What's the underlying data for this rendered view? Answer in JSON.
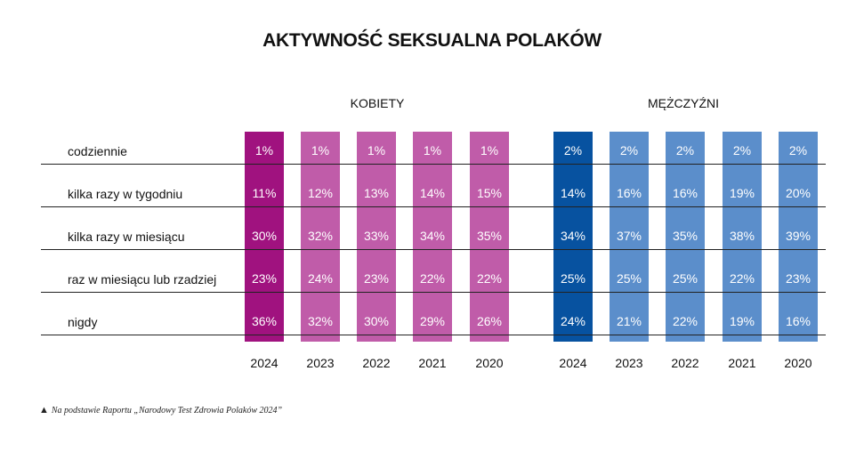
{
  "title": "AKTYWNOŚĆ SEKSUALNA POLAKÓW",
  "footnote": "Na podstawie Raportu „Narodowy Test Zdrowia Polaków 2024”",
  "footnote_icon": "triangle-icon",
  "colors": {
    "women_current": "#a0127f",
    "women_past": "#c05ca9",
    "men_current": "#0752a0",
    "men_past": "#5b8ecb"
  },
  "chart_data": {
    "type": "table",
    "title": "AKTYWNOŚĆ SEKSUALNA POLAKÓW",
    "rows": [
      "codziennie",
      "kilka razy w tygodniu",
      "kilka razy w miesiącu",
      "raz w miesiącu lub rzadziej",
      "nigdy"
    ],
    "groups": [
      {
        "name": "KOBIETY",
        "years": [
          "2024",
          "2023",
          "2022",
          "2021",
          "2020"
        ],
        "values": [
          [
            "1%",
            "11%",
            "30%",
            "23%",
            "36%"
          ],
          [
            "1%",
            "12%",
            "32%",
            "24%",
            "32%"
          ],
          [
            "1%",
            "13%",
            "33%",
            "23%",
            "30%"
          ],
          [
            "1%",
            "14%",
            "34%",
            "22%",
            "29%"
          ],
          [
            "1%",
            "15%",
            "35%",
            "22%",
            "26%"
          ]
        ]
      },
      {
        "name": "MĘŻCZYŹNI",
        "years": [
          "2024",
          "2023",
          "2022",
          "2021",
          "2020"
        ],
        "values": [
          [
            "2%",
            "14%",
            "34%",
            "25%",
            "24%"
          ],
          [
            "2%",
            "16%",
            "37%",
            "25%",
            "21%"
          ],
          [
            "2%",
            "16%",
            "35%",
            "25%",
            "22%"
          ],
          [
            "2%",
            "19%",
            "38%",
            "22%",
            "19%"
          ],
          [
            "2%",
            "20%",
            "39%",
            "23%",
            "16%"
          ]
        ]
      }
    ]
  }
}
